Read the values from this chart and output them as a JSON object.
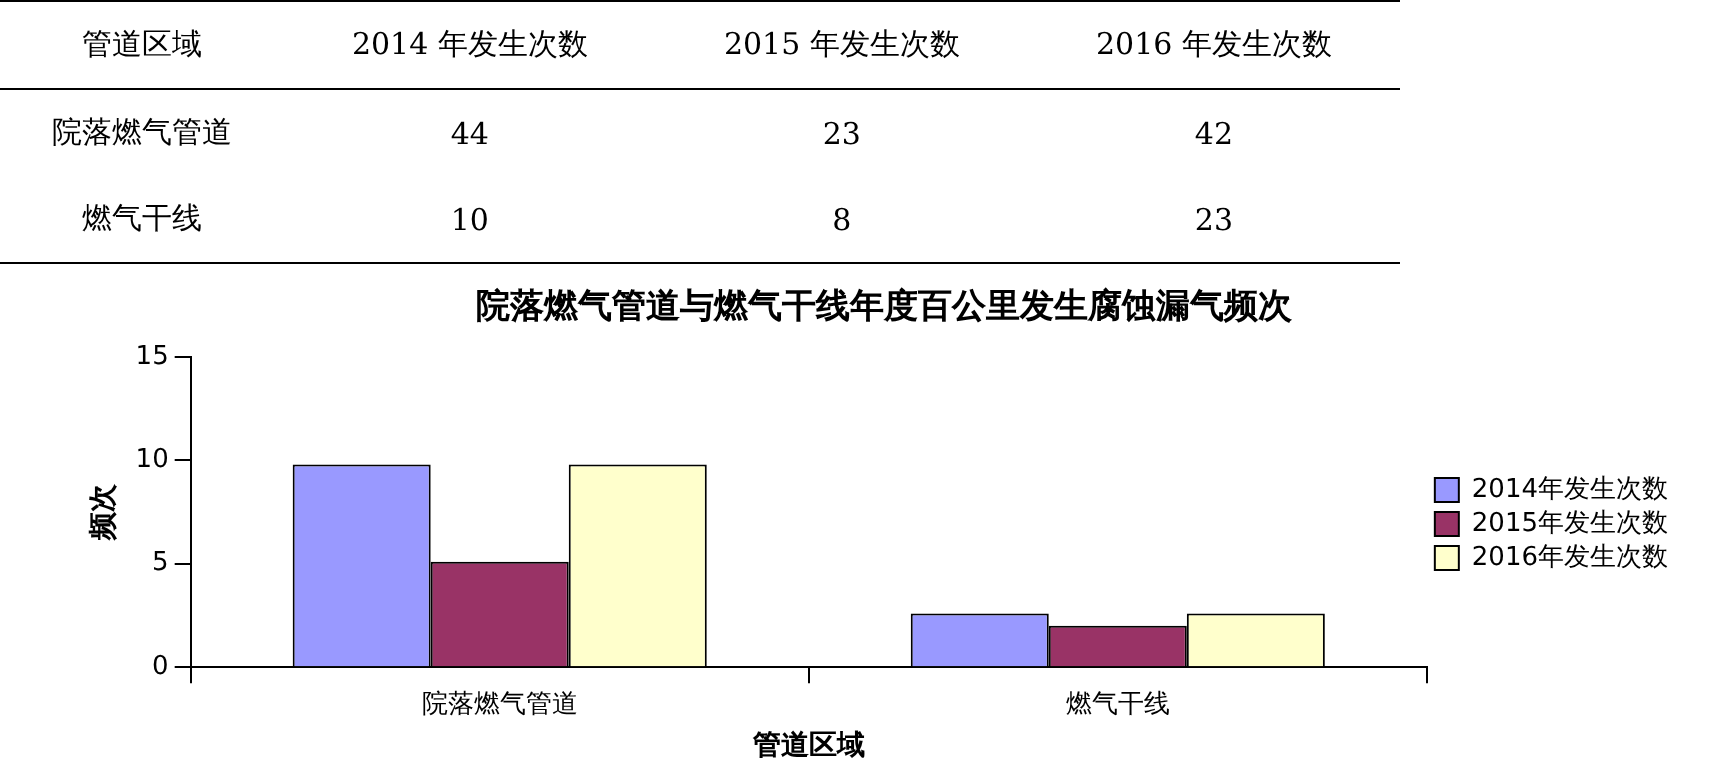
{
  "chart_data": [
    {
      "type": "heatmap",
      "ylabel": "管道区域",
      "categories": [
        "2014 年发生次数",
        "2015 年发生次数",
        "2016 年发生次数"
      ],
      "y_categories": [
        "院落燃气管道",
        "燃气干线"
      ],
      "cells": [
        [
          44,
          23,
          42
        ],
        [
          10,
          8,
          23
        ]
      ],
      "data_labels": true
    },
    {
      "type": "bar",
      "title": "院落燃气管道与燃气干线年度百公里发生腐蚀漏气频次",
      "xlabel": "管道区域",
      "ylabel": "频次",
      "categories": [
        "院落燃气管道",
        "燃气干线"
      ],
      "series": [
        {
          "name": "2014年发生次数",
          "color": "#9999ff",
          "values": [
            9.8,
            2.6
          ]
        },
        {
          "name": "2015年发生次数",
          "color": "#993366",
          "values": [
            5.1,
            2.0
          ]
        },
        {
          "name": "2016年发生次数",
          "color": "#ffffcc",
          "values": [
            9.8,
            2.6
          ]
        }
      ],
      "ylim": [
        0,
        15
      ],
      "yticks": [
        0,
        5,
        10,
        15
      ],
      "grid": false,
      "legend": "right"
    }
  ]
}
